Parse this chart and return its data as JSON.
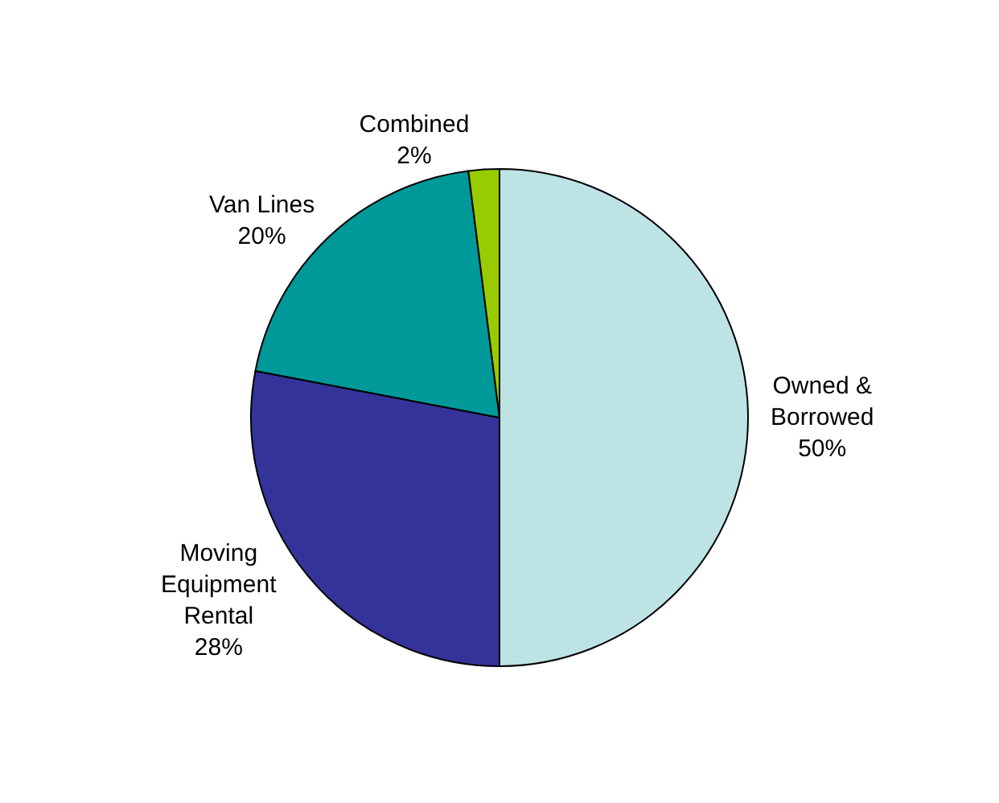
{
  "chart_data": {
    "type": "pie",
    "categories": [
      "Owned &\nBorrowed",
      "Moving\nEquipment\nRental",
      "Van Lines",
      "Combined"
    ],
    "values": [
      50,
      28,
      20,
      2
    ],
    "value_labels": [
      "50%",
      "28%",
      "20%",
      "2%"
    ],
    "colors": [
      "#bde3e5",
      "#333399",
      "#009999",
      "#99cc00"
    ],
    "legend": false
  }
}
